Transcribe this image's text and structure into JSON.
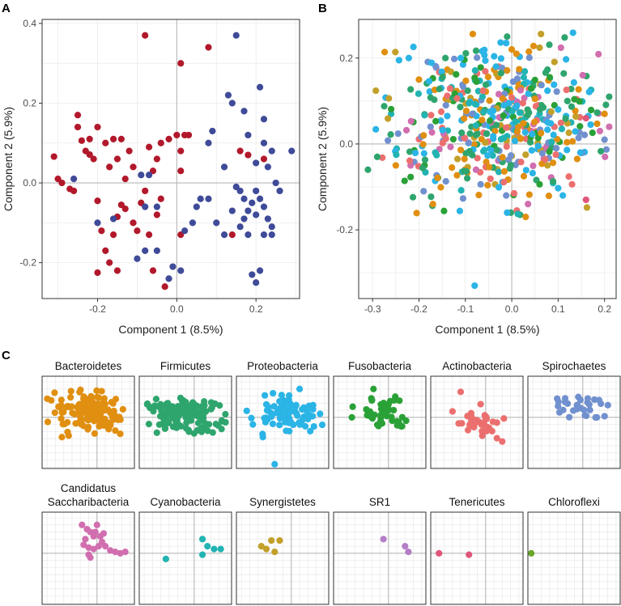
{
  "panel_labels": {
    "a": "A",
    "b": "B",
    "c": "C"
  },
  "colors": {
    "red": "#b2182b",
    "blue": "#3f4a98",
    "Bacteroidetes": "#e08f10",
    "Firmicutes": "#2fa56e",
    "Proteobacteria": "#2bb4e6",
    "Fusobacteria": "#2aa136",
    "Actinobacteria": "#ec6f6f",
    "Spirochaetes": "#7190cf",
    "Candidatus Saccharibacteria": "#d16eaf",
    "Cyanobacteria": "#22b3b3",
    "Synergistetes": "#c2a02a",
    "SR1": "#b47ec6",
    "Tenericutes": "#e0567b",
    "Chloroflexi": "#6aa628"
  },
  "chart_data": [
    {
      "id": "A",
      "type": "scatter",
      "title": "",
      "xlabel": "Component 1 (8.5%)",
      "ylabel": "Component 2 (5.9%)",
      "xlim": [
        -0.34,
        0.31
      ],
      "ylim": [
        -0.29,
        0.41
      ],
      "xticks": [
        "-0.2",
        "0.0",
        "0.2"
      ],
      "yticks": [
        "-0.2",
        "0.0",
        "0.2",
        "0.4"
      ],
      "grid": true,
      "series": [
        {
          "color": "red",
          "points": [
            [
              -0.31,
              0.066
            ],
            [
              -0.3,
              0.01
            ],
            [
              -0.27,
              -0.015
            ],
            [
              -0.26,
              -0.02
            ],
            [
              -0.25,
              0.17
            ],
            [
              -0.25,
              0.14
            ],
            [
              -0.24,
              0.106
            ],
            [
              -0.23,
              0.08
            ],
            [
              -0.22,
              0.071
            ],
            [
              -0.21,
              0.06
            ],
            [
              -0.19,
              -0.12
            ],
            [
              -0.2,
              -0.045
            ],
            [
              -0.2,
              0.14
            ],
            [
              -0.18,
              0.1
            ],
            [
              -0.17,
              0.04
            ],
            [
              -0.16,
              0.11
            ],
            [
              -0.15,
              0.06
            ],
            [
              -0.14,
              0.11
            ],
            [
              -0.12,
              0.08
            ],
            [
              -0.11,
              0.04
            ],
            [
              -0.13,
              0.01
            ],
            [
              -0.2,
              -0.225
            ],
            [
              -0.18,
              -0.17
            ],
            [
              -0.17,
              -0.2
            ],
            [
              -0.16,
              -0.13
            ],
            [
              -0.15,
              -0.085
            ],
            [
              -0.14,
              -0.055
            ],
            [
              -0.13,
              -0.065
            ],
            [
              -0.11,
              -0.1
            ],
            [
              -0.1,
              -0.12
            ],
            [
              -0.09,
              -0.05
            ],
            [
              -0.08,
              -0.02
            ],
            [
              -0.07,
              -0.13
            ],
            [
              -0.05,
              -0.08
            ],
            [
              -0.04,
              -0.04
            ],
            [
              -0.06,
              0.03
            ],
            [
              -0.04,
              0.1
            ],
            [
              -0.02,
              0.11
            ],
            [
              0.0,
              0.12
            ],
            [
              0.01,
              0.08
            ],
            [
              0.02,
              0.12
            ],
            [
              0.01,
              0.03
            ],
            [
              -0.06,
              -0.22
            ],
            [
              -0.03,
              -0.26
            ],
            [
              -0.15,
              -0.22
            ],
            [
              -0.08,
              0.37
            ],
            [
              0.01,
              0.3
            ],
            [
              0.08,
              0.34
            ],
            [
              0.01,
              -0.13
            ],
            [
              0.14,
              -0.13
            ],
            [
              0.16,
              0.08
            ],
            [
              0.18,
              0.07
            ],
            [
              0.22,
              0.06
            ],
            [
              -0.22,
              0.11
            ],
            [
              -0.29,
              0.0
            ],
            [
              -0.05,
              0.06
            ],
            [
              -0.07,
              0.09
            ],
            [
              0.03,
              0.12
            ]
          ]
        },
        {
          "color": "blue",
          "points": [
            [
              -0.26,
              0.01
            ],
            [
              -0.2,
              -0.1
            ],
            [
              -0.16,
              -0.09
            ],
            [
              -0.09,
              0.02
            ],
            [
              -0.07,
              0.02
            ],
            [
              -0.08,
              -0.06
            ],
            [
              -0.05,
              -0.06
            ],
            [
              -0.1,
              -0.19
            ],
            [
              -0.08,
              -0.17
            ],
            [
              -0.05,
              -0.17
            ],
            [
              -0.01,
              -0.21
            ],
            [
              -0.02,
              -0.24
            ],
            [
              0.01,
              -0.22
            ],
            [
              0.02,
              -0.12
            ],
            [
              0.04,
              -0.1
            ],
            [
              0.06,
              -0.04
            ],
            [
              0.08,
              -0.04
            ],
            [
              0.09,
              0.13
            ],
            [
              0.08,
              0.1
            ],
            [
              0.12,
              0.04
            ],
            [
              0.13,
              0.22
            ],
            [
              0.14,
              0.2
            ],
            [
              0.15,
              0.37
            ],
            [
              0.17,
              0.18
            ],
            [
              0.18,
              0.12
            ],
            [
              0.2,
              0.05
            ],
            [
              0.22,
              0.1
            ],
            [
              0.21,
              0.24
            ],
            [
              0.22,
              0.16
            ],
            [
              0.23,
              0.04
            ],
            [
              0.24,
              0.08
            ],
            [
              0.15,
              -0.01
            ],
            [
              0.16,
              -0.02
            ],
            [
              0.17,
              -0.04
            ],
            [
              0.18,
              -0.07
            ],
            [
              0.19,
              -0.05
            ],
            [
              0.2,
              -0.08
            ],
            [
              0.21,
              -0.04
            ],
            [
              0.22,
              -0.06
            ],
            [
              0.23,
              -0.09
            ],
            [
              0.24,
              -0.11
            ],
            [
              0.22,
              -0.13
            ],
            [
              0.24,
              -0.13
            ],
            [
              0.19,
              -0.23
            ],
            [
              0.21,
              -0.22
            ],
            [
              0.2,
              -0.25
            ],
            [
              0.25,
              0.0
            ],
            [
              0.26,
              -0.02
            ],
            [
              0.29,
              0.08
            ],
            [
              0.14,
              -0.07
            ],
            [
              0.16,
              -0.11
            ],
            [
              0.17,
              -0.09
            ],
            [
              0.18,
              -0.13
            ],
            [
              0.2,
              -0.02
            ],
            [
              0.12,
              -0.13
            ],
            [
              0.1,
              -0.1
            ],
            [
              0.05,
              -0.06
            ]
          ]
        }
      ]
    },
    {
      "id": "B",
      "type": "scatter",
      "title": "",
      "xlabel": "Component 1 (8.5%)",
      "ylabel": "Component 2 (5.9%)",
      "xlim": [
        -0.33,
        0.225
      ],
      "ylim": [
        -0.36,
        0.29
      ],
      "xticks": [
        "-0.3",
        "-0.2",
        "-0.1",
        "0.0",
        "0.1",
        "0.2"
      ],
      "yticks": [
        "-0.2",
        "0.0",
        "0.2"
      ],
      "grid": true,
      "cloud": {
        "count": 520,
        "x_range": [
          -0.31,
          0.21
        ],
        "y_range": [
          -0.17,
          0.26
        ],
        "center": [
          -0.03,
          0.05
        ]
      },
      "series": [
        {
          "color": "Proteobacteria",
          "points": [
            [
              -0.08,
              -0.33
            ],
            [
              -0.11,
              0.2
            ],
            [
              0.1,
              0.08
            ],
            [
              0.11,
              -0.12
            ],
            [
              -0.01,
              -0.16
            ]
          ]
        },
        {
          "color": "Bacteroidetes",
          "points": [
            [
              0.0,
              0.22
            ],
            [
              0.01,
              0.21
            ],
            [
              -0.2,
              0.15
            ],
            [
              0.2,
              0.07
            ],
            [
              -0.25,
              -0.05
            ],
            [
              0.03,
              -0.17
            ]
          ]
        },
        {
          "color": "Firmicutes",
          "points": [
            [
              -0.31,
              -0.06
            ],
            [
              -0.29,
              -0.03
            ],
            [
              -0.01,
              0.25
            ],
            [
              0.12,
              0.1
            ]
          ]
        },
        {
          "color": "Tenericutes",
          "points": [
            [
              0.16,
              -0.13
            ],
            [
              0.16,
              0.06
            ]
          ]
        },
        {
          "color": "Spirochaetes",
          "points": [
            [
              0.2,
              0.01
            ],
            [
              -0.19,
              -0.11
            ]
          ]
        },
        {
          "color": "Candidatus Saccharibacteria",
          "points": [
            [
              0.21,
              0.04
            ],
            [
              0.19,
              0.03
            ]
          ]
        }
      ]
    }
  ],
  "facets": {
    "xlim": [
      -0.33,
      0.225
    ],
    "ylim": [
      -0.36,
      0.29
    ],
    "panels": [
      {
        "label": "Bacteroidetes",
        "label_lines": [
          "Bacteroidetes"
        ],
        "color": "Bacteroidetes",
        "n": 140,
        "x_range": [
          -0.31,
          0.21
        ],
        "y_range": [
          -0.14,
          0.2
        ],
        "center": [
          -0.05,
          0.03
        ]
      },
      {
        "label": "Firmicutes",
        "label_lines": [
          "Firmicutes"
        ],
        "color": "Firmicutes",
        "n": 140,
        "x_range": [
          -0.31,
          0.2
        ],
        "y_range": [
          -0.13,
          0.17
        ],
        "center": [
          -0.05,
          0.02
        ]
      },
      {
        "label": "Proteobacteria",
        "label_lines": [
          "Proteobacteria"
        ],
        "color": "Proteobacteria",
        "n": 80,
        "x_range": [
          -0.3,
          0.19
        ],
        "y_range": [
          -0.14,
          0.16
        ],
        "center": [
          -0.03,
          0.02
        ],
        "points": [
          [
            -0.11,
            0.17
          ],
          [
            -0.1,
            -0.33
          ],
          [
            0.05,
            0.2
          ]
        ]
      },
      {
        "label": "Fusobacteria",
        "label_lines": [
          "Fusobacteria"
        ],
        "color": "Fusobacteria",
        "n": 45,
        "x_range": [
          -0.22,
          0.17
        ],
        "y_range": [
          -0.08,
          0.17
        ],
        "center": [
          -0.02,
          0.04
        ],
        "points": [
          [
            -0.22,
            0.0
          ],
          [
            -0.09,
            0.2
          ]
        ]
      },
      {
        "label": "Actinobacteria",
        "label_lines": [
          "Actinobacteria"
        ],
        "color": "Actinobacteria",
        "n": 38,
        "x_range": [
          -0.2,
          0.12
        ],
        "y_range": [
          -0.16,
          0.1
        ],
        "center": [
          -0.04,
          -0.03
        ],
        "points": [
          [
            -0.15,
            0.18
          ],
          [
            0.1,
            -0.17
          ]
        ]
      },
      {
        "label": "Spirochaetes",
        "label_lines": [
          "Spirochaetes"
        ],
        "color": "Spirochaetes",
        "n": 30,
        "x_range": [
          -0.19,
          0.17
        ],
        "y_range": [
          -0.05,
          0.17
        ],
        "center": [
          -0.03,
          0.07
        ]
      },
      {
        "label": "Candidatus Saccharibacteria",
        "label_lines": [
          "Candidatus",
          "Saccharibacteria"
        ],
        "color": "Candidatus Saccharibacteria",
        "points": [
          [
            -0.09,
            0.2
          ],
          [
            -0.06,
            0.17
          ],
          [
            -0.04,
            0.15
          ],
          [
            -0.02,
            0.12
          ],
          [
            -0.01,
            0.15
          ],
          [
            0.02,
            0.12
          ],
          [
            0.04,
            0.14
          ],
          [
            0.03,
            0.08
          ],
          [
            -0.08,
            0.06
          ],
          [
            -0.05,
            0.04
          ],
          [
            -0.02,
            0.03
          ],
          [
            0.01,
            0.05
          ],
          [
            0.05,
            0.05
          ],
          [
            0.08,
            0.02
          ],
          [
            0.11,
            0.01
          ],
          [
            0.14,
            0.0
          ],
          [
            0.17,
            0.01
          ],
          [
            -0.05,
            -0.01
          ],
          [
            -0.04,
            -0.03
          ],
          [
            -0.07,
            0.1
          ],
          [
            0.0,
            0.2
          ]
        ]
      },
      {
        "label": "Cyanobacteria",
        "label_lines": [
          "Cyanobacteria"
        ],
        "color": "Cyanobacteria",
        "points": [
          [
            0.05,
            0.1
          ],
          [
            0.08,
            0.05
          ],
          [
            0.12,
            0.03
          ],
          [
            0.16,
            0.03
          ],
          [
            0.05,
            -0.01
          ],
          [
            -0.17,
            -0.04
          ]
        ]
      },
      {
        "label": "Synergistetes",
        "label_lines": [
          "Synergistetes"
        ],
        "color": "Synergistetes",
        "points": [
          [
            -0.12,
            0.09
          ],
          [
            -0.07,
            0.09
          ],
          [
            -0.18,
            0.05
          ],
          [
            -0.15,
            0.03
          ],
          [
            -0.1,
            0.01
          ]
        ]
      },
      {
        "label": "SR1",
        "label_lines": [
          "SR1"
        ],
        "color": "SR1",
        "points": [
          [
            -0.03,
            0.1
          ],
          [
            0.1,
            0.05
          ],
          [
            0.12,
            0.01
          ]
        ]
      },
      {
        "label": "Tenericutes",
        "label_lines": [
          "Tenericutes"
        ],
        "color": "Tenericutes",
        "points": [
          [
            -0.28,
            0.0
          ],
          [
            -0.1,
            -0.01
          ]
        ]
      },
      {
        "label": "Chloroflexi",
        "label_lines": [
          "Chloroflexi"
        ],
        "color": "Chloroflexi",
        "points": [
          [
            -0.31,
            0.0
          ]
        ]
      }
    ]
  }
}
